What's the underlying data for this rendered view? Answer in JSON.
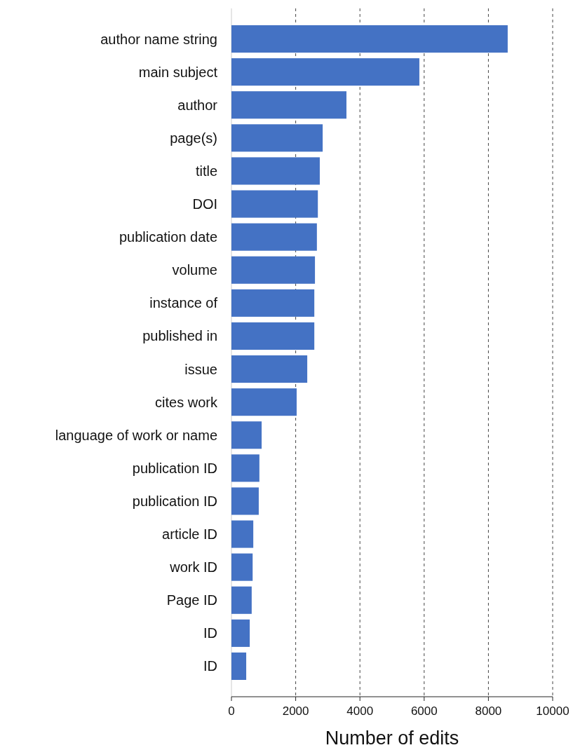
{
  "chart_data": {
    "type": "bar",
    "orientation": "horizontal",
    "xlabel": "Number of edits",
    "categories": [
      "author name string",
      "main subject",
      "author",
      "page(s)",
      "title",
      "DOI",
      "publication date",
      "volume",
      "instance of",
      "published in",
      "issue",
      "cites work",
      "language of work or name",
      "publication ID",
      "publication ID",
      "article ID",
      "work ID",
      "Page ID",
      "ID",
      "ID"
    ],
    "values": [
      8600,
      5850,
      3580,
      2840,
      2750,
      2690,
      2660,
      2600,
      2580,
      2580,
      2360,
      2030,
      940,
      870,
      850,
      680,
      660,
      630,
      570,
      460
    ],
    "color": "#4472c4",
    "xlim": [
      0,
      10000
    ],
    "xticks": [
      0,
      2000,
      4000,
      6000,
      8000,
      10000
    ],
    "grid": "x",
    "line_style": "dashed"
  }
}
